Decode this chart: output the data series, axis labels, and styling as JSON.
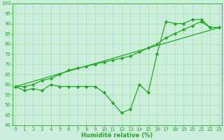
{
  "line1_x": [
    0,
    1,
    2,
    3,
    4,
    5,
    6,
    7,
    8,
    9,
    10,
    11,
    12,
    13,
    14,
    15,
    16,
    17,
    18,
    19,
    20,
    21,
    22,
    23
  ],
  "line1_y": [
    59,
    57,
    58,
    57,
    60,
    59,
    59,
    59,
    59,
    59,
    56,
    51,
    46,
    48,
    60,
    56,
    75,
    91,
    90,
    90,
    92,
    92,
    88,
    88
  ],
  "line2_x": [
    0,
    1,
    2,
    3,
    4,
    5,
    6,
    7,
    8,
    9,
    10,
    11,
    12,
    13,
    14,
    15,
    16,
    17,
    18,
    19,
    20,
    21,
    22,
    23
  ],
  "line2_y": [
    59,
    59,
    60,
    62,
    63,
    65,
    67,
    68,
    69,
    70,
    71,
    72,
    73,
    74,
    76,
    78,
    80,
    83,
    85,
    87,
    89,
    91,
    88,
    88
  ],
  "line3_x": [
    0,
    23
  ],
  "line3_y": [
    59,
    88
  ],
  "line_color": "#22aa22",
  "marker": "D",
  "markersize": 2.2,
  "xlabel": "Humidité relative (%)",
  "ylim": [
    40,
    100
  ],
  "xlim": [
    -0.3,
    23.3
  ],
  "yticks": [
    40,
    45,
    50,
    55,
    60,
    65,
    70,
    75,
    80,
    85,
    90,
    95,
    100
  ],
  "xticks": [
    0,
    1,
    2,
    3,
    4,
    5,
    6,
    7,
    8,
    9,
    10,
    11,
    12,
    13,
    14,
    15,
    16,
    17,
    18,
    19,
    20,
    21,
    22,
    23
  ],
  "grid_color": "#aaddaa",
  "bg_color": "#cceedd",
  "xlabel_color": "#22aa22",
  "xlabel_fontsize": 6.0,
  "tick_fontsize": 5.0,
  "linewidth": 0.9
}
